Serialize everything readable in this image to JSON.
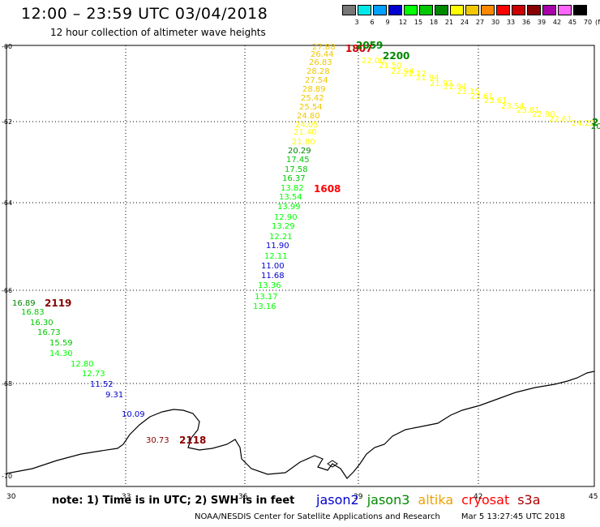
{
  "header": {
    "title": "12:00 – 23:59 UTC 03/04/2018",
    "subtitle": "12 hour collection of altimeter wave heights"
  },
  "colorbar": {
    "colors": [
      "#777777",
      "#00e8e8",
      "#00a0ff",
      "#0000d0",
      "#00ff00",
      "#00c800",
      "#008800",
      "#ffff00",
      "#f0c800",
      "#ff8800",
      "#ff0000",
      "#cc0000",
      "#880000",
      "#aa00aa",
      "#ff66ff",
      "#000000"
    ],
    "labels": [
      "3",
      "6",
      "9",
      "12",
      "15",
      "18",
      "21",
      "24",
      "27",
      "30",
      "33",
      "36",
      "39",
      "42",
      "45",
      "70"
    ],
    "unit": "(ft)"
  },
  "axes": {
    "lon_labels": [
      "30",
      "33",
      "36",
      "39",
      "42",
      "45"
    ],
    "lat_labels": [
      "-60",
      "-62",
      "-64",
      "-66",
      "-68",
      "-70"
    ]
  },
  "tracks": [
    {
      "name": "main-track",
      "points": [
        {
          "v": "13.16",
          "c": "#00ff00"
        },
        {
          "v": "13.17",
          "c": "#00ff00"
        },
        {
          "v": "13.36",
          "c": "#00ff00"
        },
        {
          "v": "11.68",
          "c": "#0000d0"
        },
        {
          "v": "11.00",
          "c": "#0000d0"
        },
        {
          "v": "12.11",
          "c": "#00ff00"
        },
        {
          "v": "11.90",
          "c": "#0000d0"
        },
        {
          "v": "12.21",
          "c": "#00ff00"
        },
        {
          "v": "13.29",
          "c": "#00ff00"
        },
        {
          "v": "12.90",
          "c": "#00ff00"
        },
        {
          "v": "13.99",
          "c": "#00ff00"
        },
        {
          "v": "13.54",
          "c": "#00ff00"
        },
        {
          "v": "13.82",
          "c": "#00ff00"
        },
        {
          "v": "16.37",
          "c": "#00c800"
        },
        {
          "v": "17.58",
          "c": "#00c800"
        },
        {
          "v": "17.45",
          "c": "#00c800"
        },
        {
          "v": "20.29",
          "c": "#008800"
        },
        {
          "v": "21.80",
          "c": "#ffff00"
        },
        {
          "v": "21.40",
          "c": "#ffff00"
        },
        {
          "v": "24.05",
          "c": "#ffff00"
        },
        {
          "v": "24.80",
          "c": "#f0c800"
        },
        {
          "v": "25.54",
          "c": "#f0c800"
        },
        {
          "v": "25.42",
          "c": "#f0c800"
        },
        {
          "v": "28.89",
          "c": "#f0c800"
        },
        {
          "v": "27.54",
          "c": "#f0c800"
        },
        {
          "v": "28.28",
          "c": "#f0c800"
        },
        {
          "v": "26.83",
          "c": "#f0c800"
        },
        {
          "v": "26.44",
          "c": "#f0c800"
        },
        {
          "v": "27.88",
          "c": "#f0c800"
        }
      ]
    },
    {
      "name": "east-track",
      "points": [
        {
          "v": "22.00",
          "c": "#ffff00"
        },
        {
          "v": "21.50",
          "c": "#ffff00"
        },
        {
          "v": "22.94",
          "c": "#ffff00"
        },
        {
          "v": "21.12",
          "c": "#ffff00"
        },
        {
          "v": "21.94",
          "c": "#ffff00"
        },
        {
          "v": "21.92",
          "c": "#ffff00"
        },
        {
          "v": "22.94",
          "c": "#ffff00"
        },
        {
          "v": "23.15",
          "c": "#ffff00"
        },
        {
          "v": "23.61",
          "c": "#ffff00"
        },
        {
          "v": "23.61",
          "c": "#ffff00"
        },
        {
          "v": "23.54",
          "c": "#ffff00"
        },
        {
          "v": "23.81",
          "c": "#ffff00"
        },
        {
          "v": "22.90",
          "c": "#ffff00"
        },
        {
          "v": "22.61",
          "c": "#ffff00"
        },
        {
          "v": "24.22",
          "c": "#ffff00"
        },
        {
          "v": "20",
          "c": "#008800"
        }
      ]
    },
    {
      "name": "west-track",
      "points": [
        {
          "v": "16.89",
          "c": "#008800"
        },
        {
          "v": "16.83",
          "c": "#00c800"
        },
        {
          "v": "16.30",
          "c": "#00c800"
        },
        {
          "v": "16.73",
          "c": "#00c800"
        },
        {
          "v": "15.59",
          "c": "#00c800"
        },
        {
          "v": "14.30",
          "c": "#00ff00"
        },
        {
          "v": "12.80",
          "c": "#00ff00"
        },
        {
          "v": "12.73",
          "c": "#00ff00"
        },
        {
          "v": "11.52",
          "c": "#0000d0"
        },
        {
          "v": "9.31",
          "c": "#0000d0"
        },
        {
          "v": "10.09",
          "c": "#0000d0"
        },
        {
          "v": "30.73",
          "c": "#880000"
        }
      ]
    }
  ],
  "time_labels": [
    {
      "t": "1807",
      "c": "#cc0000"
    },
    {
      "t": "2059",
      "c": "#008800"
    },
    {
      "t": "2200",
      "c": "#008800"
    },
    {
      "t": "1608",
      "c": "#ff0000"
    },
    {
      "t": "2119",
      "c": "#880000"
    },
    {
      "t": "2118",
      "c": "#880000"
    },
    {
      "t": "2",
      "c": "#008800"
    }
  ],
  "note": "note: 1) Time is in UTC; 2) SWH is in feet",
  "satellites": [
    {
      "name": "jason2",
      "c": "#0000d0"
    },
    {
      "name": "jason3",
      "c": "#008800"
    },
    {
      "name": "altika",
      "c": "#f0a000"
    },
    {
      "name": "cryosat",
      "c": "#ff0000"
    },
    {
      "name": "s3a",
      "c": "#aa0000"
    }
  ],
  "footer": {
    "org": "NOAA/NESDIS Center for Satellite Applications and Research",
    "timestamp": "Mar  5 13:27:45 UTC 2018"
  }
}
